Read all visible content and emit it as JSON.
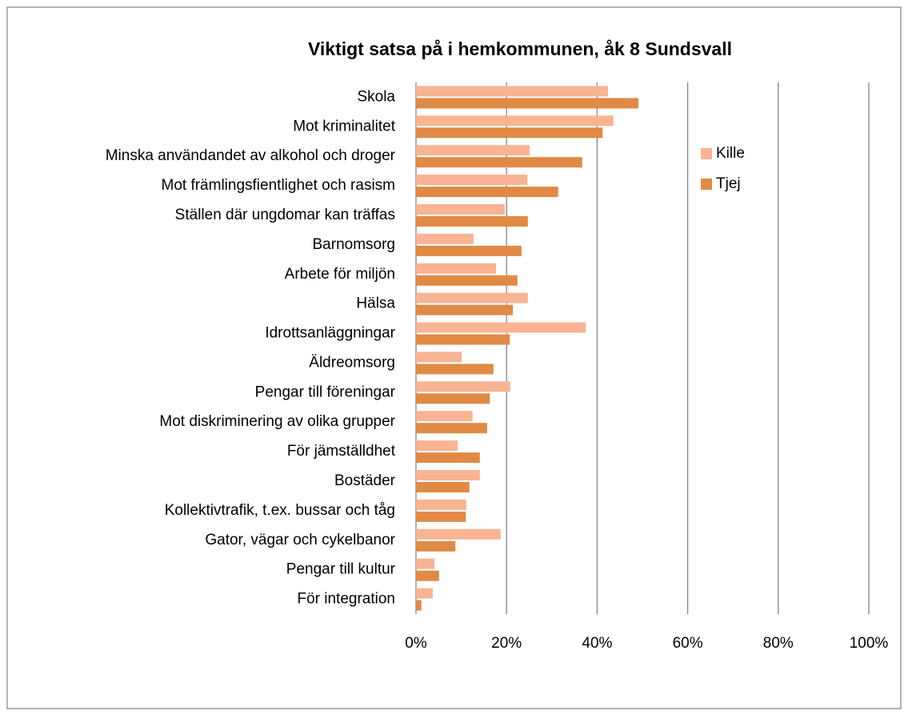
{
  "chart_data": {
    "type": "hbar",
    "title": "Viktigt satsa på i hemkommunen, åk 8 Sundsvall",
    "categories": [
      "Skola",
      "Mot kriminalitet",
      "Minska användandet av alkohol och droger",
      "Mot främlingsfientlighet och rasism",
      "Ställen där ungdomar kan träffas",
      "Barnomsorg",
      "Arbete för miljön",
      "Hälsa",
      "Idrottsanläggningar",
      "Äldreomsorg",
      "Pengar till föreningar",
      "Mot diskriminering av olika grupper",
      "För jämställdhet",
      "Bostäder",
      "Kollektivtrafik, t.ex. bussar och tåg",
      "Gator, vägar och cykelbanor",
      "Pengar till kultur",
      "För integration"
    ],
    "series": [
      {
        "name": "Kille",
        "color": "#f8b493",
        "values": [
          42.4,
          43.6,
          25.1,
          24.6,
          19.6,
          12.7,
          17.7,
          24.7,
          37.5,
          10.1,
          20.8,
          12.5,
          9.2,
          14.1,
          11.1,
          18.7,
          4.1,
          3.7
        ]
      },
      {
        "name": "Tjej",
        "color": "#e08a45",
        "values": [
          49.1,
          41.2,
          36.7,
          31.4,
          24.7,
          23.3,
          22.4,
          21.4,
          20.7,
          17.1,
          16.3,
          15.7,
          14.1,
          11.8,
          11.0,
          8.7,
          5.1,
          1.2
        ]
      }
    ],
    "xlim": [
      0,
      100
    ],
    "xticks": [
      {
        "value": 0,
        "label": "0%"
      },
      {
        "value": 20,
        "label": "20%"
      },
      {
        "value": 40,
        "label": "40%"
      },
      {
        "value": 60,
        "label": "60%"
      },
      {
        "value": 80,
        "label": "80%"
      },
      {
        "value": 100,
        "label": "100%"
      }
    ],
    "grid": true,
    "legend": "right"
  }
}
